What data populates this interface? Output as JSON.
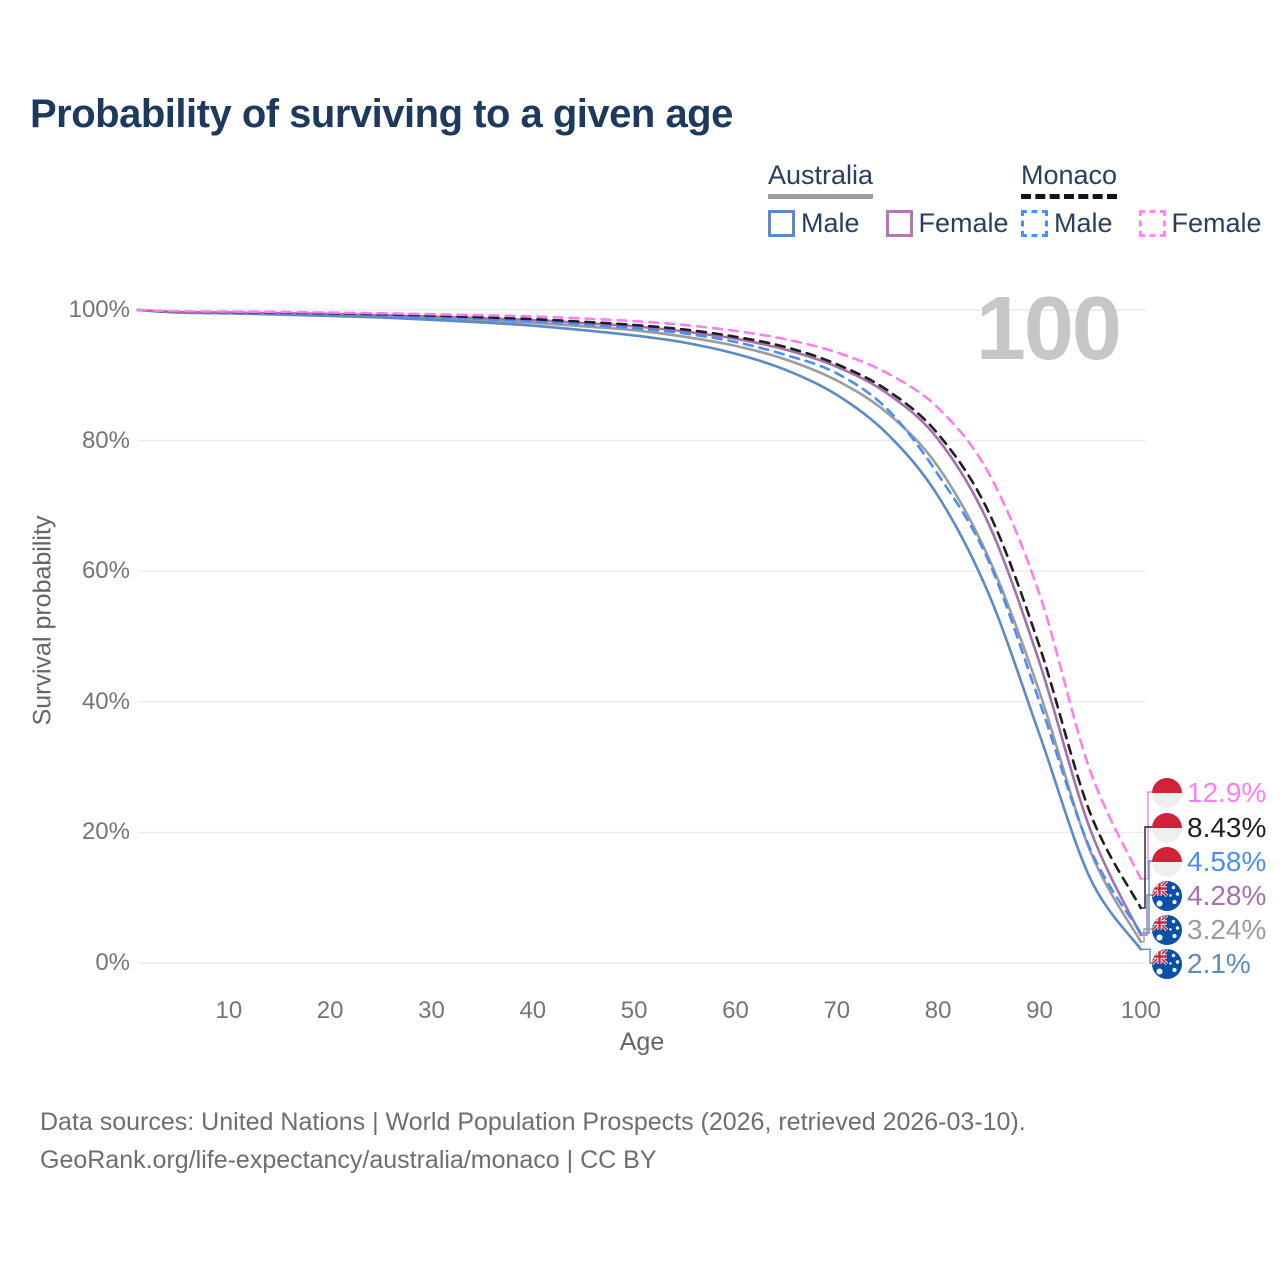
{
  "title": "Probability of surviving to a given age",
  "watermark": "100",
  "legend": {
    "groups": [
      {
        "country": "Australia",
        "underline_style": "solid",
        "underline_color": "#9e9e9e",
        "items": [
          {
            "label": "Male",
            "color": "#5c89c8",
            "dash": false
          },
          {
            "label": "Female",
            "color": "#b377b8",
            "dash": false
          }
        ]
      },
      {
        "country": "Monaco",
        "underline_style": "dashed",
        "underline_color": "#141414",
        "items": [
          {
            "label": "Male",
            "color": "#4a8ef7",
            "dash": true
          },
          {
            "label": "Female",
            "color": "#ff85f2",
            "dash": true
          }
        ]
      }
    ]
  },
  "chart_data": {
    "type": "line",
    "title": "Probability of surviving to a given age",
    "xlabel": "Age",
    "ylabel": "Survival probability",
    "xlim": [
      1,
      100
    ],
    "ylim": [
      0,
      100
    ],
    "grid": "horizontal",
    "legend_position": "top-right",
    "hover_readout_age": "100",
    "x_ticks": [
      {
        "v": 10,
        "label": "10"
      },
      {
        "v": 20,
        "label": "20"
      },
      {
        "v": 30,
        "label": "30"
      },
      {
        "v": 40,
        "label": "40"
      },
      {
        "v": 50,
        "label": "50"
      },
      {
        "v": 60,
        "label": "60"
      },
      {
        "v": 70,
        "label": "70"
      },
      {
        "v": 80,
        "label": "80"
      },
      {
        "v": 90,
        "label": "90"
      },
      {
        "v": 100,
        "label": "100"
      }
    ],
    "y_ticks": [
      {
        "v": 0,
        "label": "0%"
      },
      {
        "v": 20,
        "label": "20%"
      },
      {
        "v": 40,
        "label": "40%"
      },
      {
        "v": 60,
        "label": "60%"
      },
      {
        "v": 80,
        "label": "80%"
      },
      {
        "v": 100,
        "label": "100%"
      }
    ],
    "ages": [
      1,
      5,
      10,
      15,
      20,
      25,
      30,
      35,
      40,
      45,
      50,
      55,
      60,
      65,
      70,
      75,
      80,
      85,
      90,
      95,
      100
    ],
    "series": [
      {
        "name": "Monaco Female",
        "country": "Monaco",
        "sex": "Female",
        "style": "dashed",
        "color": "#ff7df0",
        "end_label": "12.9%",
        "flag": "monaco",
        "values": [
          100,
          99.8,
          99.75,
          99.7,
          99.6,
          99.5,
          99.35,
          99.2,
          99.0,
          98.7,
          98.3,
          97.7,
          96.8,
          95.5,
          93.5,
          90.3,
          85.0,
          75.0,
          56.5,
          29.5,
          12.9
        ]
      },
      {
        "name": "Monaco",
        "country": "Monaco",
        "sex": "Both",
        "style": "dashed",
        "color": "#1f1f1f",
        "end_label": "8.43%",
        "flag": "monaco",
        "values": [
          100,
          99.75,
          99.7,
          99.6,
          99.5,
          99.35,
          99.15,
          98.9,
          98.6,
          98.2,
          97.7,
          97.0,
          95.9,
          94.3,
          91.7,
          87.7,
          81.0,
          69.0,
          48.5,
          23.0,
          8.43
        ]
      },
      {
        "name": "Monaco Male",
        "country": "Monaco",
        "sex": "Male",
        "style": "dashed",
        "color": "#4a8ef7",
        "end_label": "4.58%",
        "flag": "monaco",
        "values": [
          100,
          99.7,
          99.6,
          99.5,
          99.35,
          99.15,
          98.9,
          98.6,
          98.25,
          97.8,
          97.2,
          96.4,
          95.1,
          93.1,
          90.3,
          84.8,
          74.8,
          61.5,
          40.0,
          17.5,
          4.58
        ]
      },
      {
        "name": "Australia Female",
        "country": "Australia",
        "sex": "Female",
        "style": "solid",
        "color": "#a66fae",
        "end_label": "4.28%",
        "flag": "australia",
        "values": [
          100,
          99.7,
          99.6,
          99.5,
          99.4,
          99.2,
          99.0,
          98.75,
          98.45,
          98.0,
          97.5,
          96.7,
          95.6,
          93.9,
          91.3,
          87.2,
          80.2,
          67.2,
          46.0,
          20.5,
          4.28
        ]
      },
      {
        "name": "Australia",
        "country": "Australia",
        "sex": "Both",
        "style": "solid",
        "color": "#9c9c9c",
        "end_label": "3.24%",
        "flag": "australia",
        "values": [
          100,
          99.65,
          99.55,
          99.4,
          99.25,
          99.0,
          98.75,
          98.45,
          98.05,
          97.5,
          96.9,
          95.9,
          94.5,
          92.4,
          89.2,
          84.2,
          76.0,
          62.0,
          41.5,
          17.2,
          3.24
        ]
      },
      {
        "name": "Australia Male",
        "country": "Australia",
        "sex": "Male",
        "style": "solid",
        "color": "#5c89c8",
        "end_label": "2.1%",
        "flag": "australia",
        "values": [
          100,
          99.6,
          99.5,
          99.3,
          99.1,
          98.85,
          98.5,
          98.1,
          97.6,
          96.9,
          96.1,
          95.0,
          93.3,
          90.8,
          87.0,
          81.0,
          71.5,
          56.5,
          35.0,
          13.0,
          2.1
        ]
      }
    ]
  },
  "footer": {
    "line1": "Data sources: United Nations | World Population Prospects (2026, retrieved 2026-03-10).",
    "line2": "GeoRank.org/life-expectancy/australia/monaco | CC BY"
  }
}
